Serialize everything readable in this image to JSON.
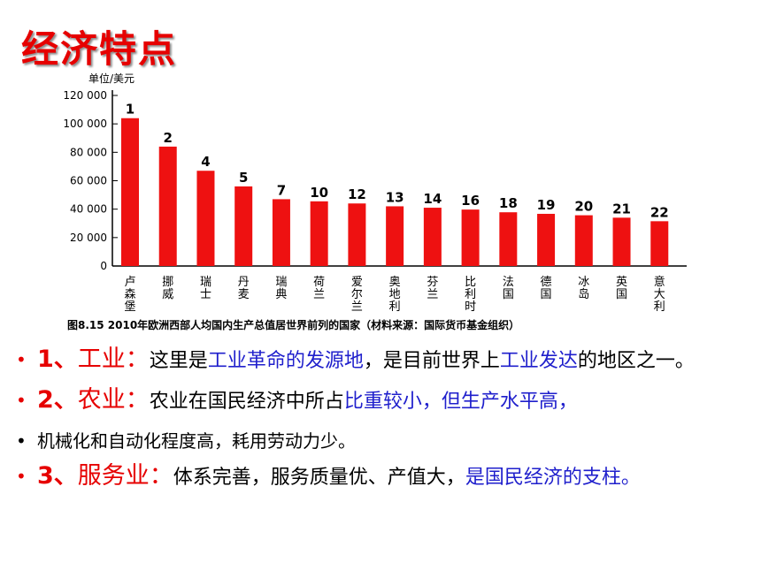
{
  "slide": {
    "title": "经济特点"
  },
  "chart_data": {
    "type": "bar",
    "ylabel": "单位/美元",
    "ylim": [
      0,
      120000
    ],
    "yticks": [
      {
        "value": 0,
        "label": "0"
      },
      {
        "value": 20000,
        "label": "20 000"
      },
      {
        "value": 40000,
        "label": "40 000"
      },
      {
        "value": 60000,
        "label": "60 000"
      },
      {
        "value": 80000,
        "label": "80 000"
      },
      {
        "value": 100000,
        "label": "100 000"
      },
      {
        "value": 120000,
        "label": "120 000"
      }
    ],
    "categories": [
      "卢森堡",
      "挪威",
      "瑞士",
      "丹麦",
      "瑞典",
      "荷兰",
      "爱尔兰",
      "奥地利",
      "芬兰",
      "比利时",
      "法国",
      "德国",
      "冰岛",
      "英国",
      "意大利"
    ],
    "values": [
      104000,
      84000,
      67000,
      56000,
      47000,
      45500,
      44000,
      42000,
      41000,
      39700,
      37800,
      36700,
      35700,
      34000,
      31500
    ],
    "ranks": [
      "1",
      "2",
      "4",
      "5",
      "7",
      "10",
      "12",
      "13",
      "14",
      "16",
      "18",
      "19",
      "20",
      "21",
      "22"
    ],
    "caption": "图8.15  2010年欧洲西部人均国内生产总值居世界前列的国家（材料来源：国际货币基金组织）",
    "bar_color": "#ee1111",
    "grid": false
  },
  "bullets": [
    {
      "num": "1、",
      "sector": "工业：",
      "parts": [
        {
          "text": "这里是",
          "color": "black"
        },
        {
          "text": "工业革命的发源地",
          "color": "blue"
        },
        {
          "text": "，是目前世界上",
          "color": "black"
        },
        {
          "text": "工业发达",
          "color": "blue"
        },
        {
          "text": "的地区之一。",
          "color": "black"
        }
      ]
    },
    {
      "num": "2、",
      "sector": "农业：",
      "parts": [
        {
          "text": "农业在国民经济中所占",
          "color": "black"
        },
        {
          "text": "比重较小，但生产水平高，",
          "color": "blue"
        }
      ]
    },
    {
      "num": "",
      "sector": "",
      "parts": [
        {
          "text": "机械化和自动化程度高，耗用劳动力少。",
          "color": "black"
        }
      ]
    },
    {
      "num": "3、",
      "sector": "服务业：",
      "parts": [
        {
          "text": "体系完善，服务质量优、产值大，",
          "color": "black"
        },
        {
          "text": "是国民经济的支柱。",
          "color": "blue"
        }
      ]
    }
  ]
}
